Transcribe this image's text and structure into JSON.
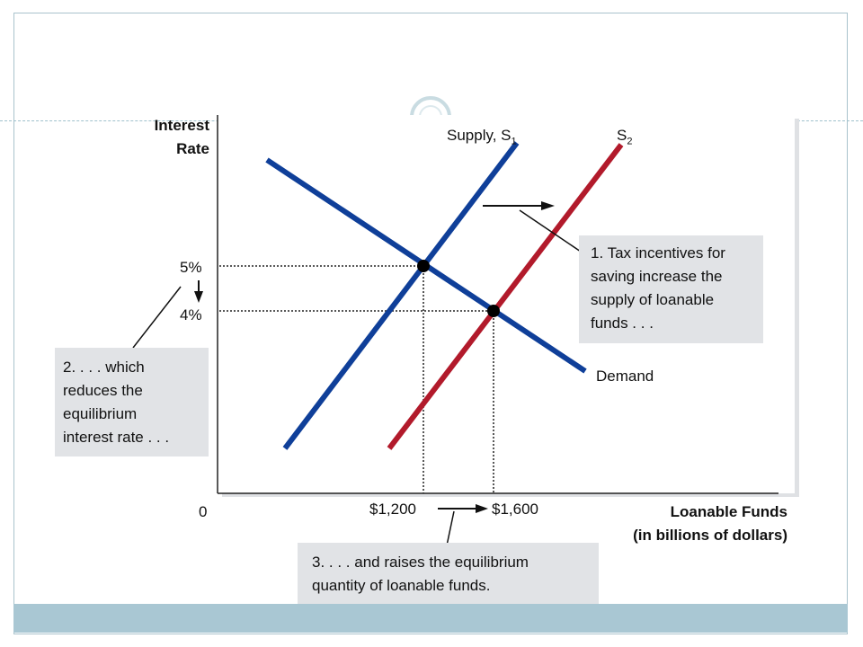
{
  "chart_data": {
    "type": "line",
    "title": "",
    "ylabel": "Interest Rate",
    "xlabel": "Loanable Funds (in billions of dollars)",
    "origin_label": "0",
    "y_ticks": [
      "5%",
      "4%"
    ],
    "x_ticks": [
      "$1,200",
      "$1,600"
    ],
    "series": [
      {
        "name": "Supply, S1",
        "label_text": "Supply, S",
        "label_sub": "1",
        "color": "#0f3f99"
      },
      {
        "name": "S2",
        "label_text": "S",
        "label_sub": "2",
        "color": "#b21a2b"
      },
      {
        "name": "Demand",
        "label_text": "Demand",
        "label_sub": "",
        "color": "#0f3f99"
      }
    ],
    "equilibria": [
      {
        "quantity": "$1,200",
        "rate": "5%"
      },
      {
        "quantity": "$1,600",
        "rate": "4%"
      }
    ],
    "annotations": {
      "note1": "1. Tax incentives for saving increase the supply of loanable funds . . .",
      "note2": "2. . . . which reduces the equilibrium interest rate . . .",
      "note3": "3. . . . and raises the equilibrium quantity of loanable funds."
    }
  },
  "colors": {
    "supply": "#0f3f99",
    "supply_shifted": "#b21a2b",
    "demand": "#0f3f99",
    "callout_bg": "#e1e3e6",
    "theme_band": "#a9c7d3"
  },
  "ylabel_lines": [
    "Interest",
    "Rate"
  ],
  "xlabel_lines": [
    "Loanable Funds",
    "(in billions of dollars)"
  ],
  "note1_lines": "1. Tax incentives for\nsaving increase the\nsupply of loanable\nfunds . . .",
  "note2_lines": "2. . . . which\nreduces the\nequilibrium\ninterest rate . . .",
  "note3_lines": "3. . . . and raises the equilibrium\nquantity of loanable funds."
}
